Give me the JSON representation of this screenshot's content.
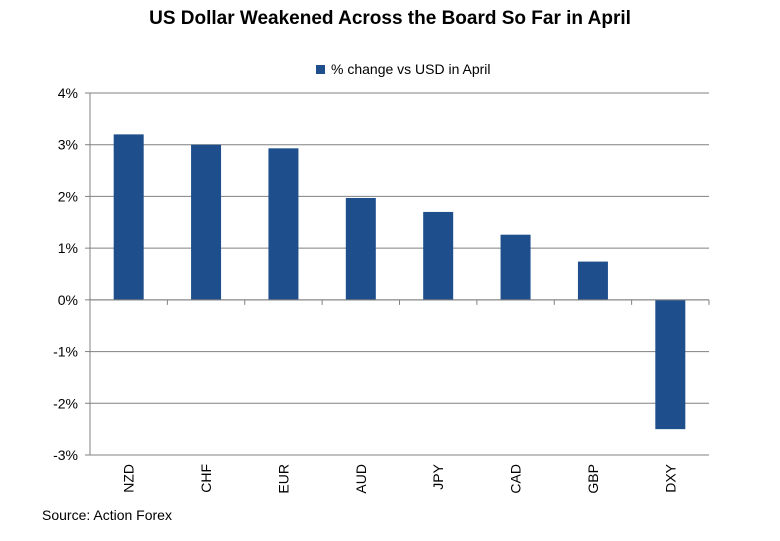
{
  "colors": {
    "bar": "#1f4e8c",
    "grid": "#808080",
    "axis": "#808080"
  },
  "chart_data": {
    "type": "bar",
    "title": "US Dollar Weakened Across the Board So Far in April",
    "legend": {
      "position": "top-center"
    },
    "series": [
      {
        "name": "% change vs USD in April",
        "values": [
          3.2,
          3.0,
          2.93,
          1.97,
          1.7,
          1.26,
          0.74,
          -2.5
        ]
      }
    ],
    "categories": [
      "NZD",
      "CHF",
      "EUR",
      "AUD",
      "JPY",
      "CAD",
      "GBP",
      "DXY"
    ],
    "ylim": [
      -3,
      4
    ],
    "yticks": [
      4,
      3,
      2,
      1,
      0,
      -1,
      -2,
      -3
    ],
    "ytick_labels": [
      "4%",
      "3%",
      "2%",
      "1%",
      "0%",
      "-1%",
      "-2%",
      "-3%"
    ],
    "grid": true,
    "source": "Source: Action Forex"
  }
}
